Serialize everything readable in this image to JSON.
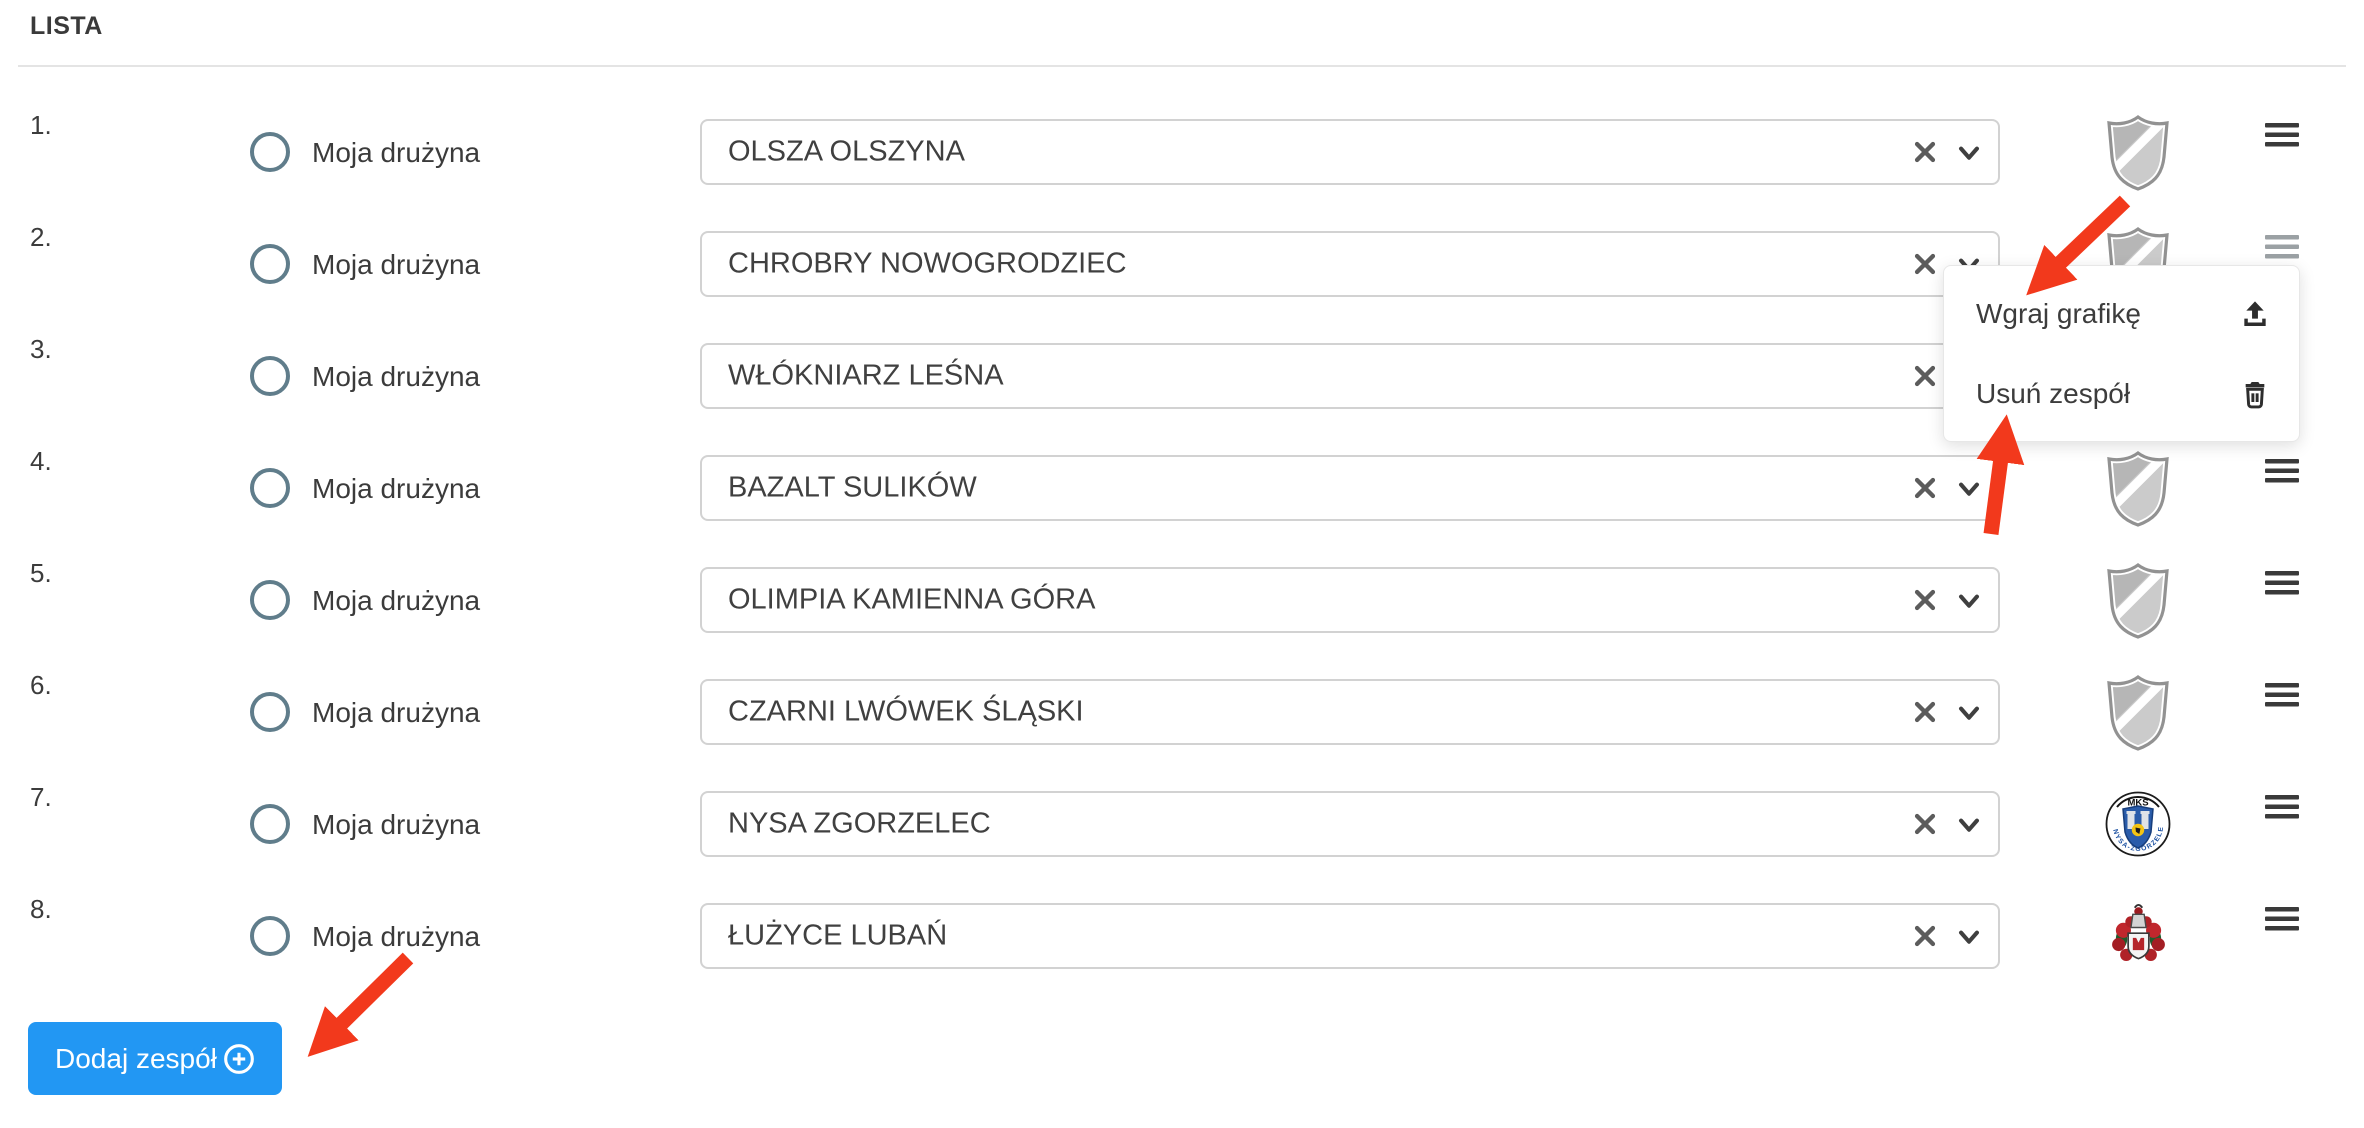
{
  "page": {
    "title_label": "LISTA"
  },
  "rows": [
    {
      "number": "1.",
      "radio_label": "Moja drużyna",
      "team_name": "OLSZA OLSZYNA",
      "badge": "placeholder",
      "menu_open": false
    },
    {
      "number": "2.",
      "radio_label": "Moja drużyna",
      "team_name": "CHROBRY NOWOGRODZIEC",
      "badge": "placeholder",
      "menu_open": true
    },
    {
      "number": "3.",
      "radio_label": "Moja drużyna",
      "team_name": "WŁÓKNIARZ LEŚNA",
      "badge": "placeholder",
      "menu_open": false
    },
    {
      "number": "4.",
      "radio_label": "Moja drużyna",
      "team_name": "BAZALT SULIKÓW",
      "badge": "placeholder",
      "menu_open": false
    },
    {
      "number": "5.",
      "radio_label": "Moja drużyna",
      "team_name": "OLIMPIA KAMIENNA GÓRA",
      "badge": "placeholder",
      "menu_open": false
    },
    {
      "number": "6.",
      "radio_label": "Moja drużyna",
      "team_name": "CZARNI LWÓWEK ŚLĄSKI",
      "badge": "placeholder",
      "menu_open": false
    },
    {
      "number": "7.",
      "radio_label": "Moja drużyna",
      "team_name": "NYSA ZGORZELEC",
      "badge": "mks-nysa-zgorzelec",
      "menu_open": false
    },
    {
      "number": "8.",
      "radio_label": "Moja drużyna",
      "team_name": "ŁUŻYCE LUBAŃ",
      "badge": "luzyce-luban",
      "menu_open": false
    }
  ],
  "context_menu": {
    "items": [
      {
        "label": "Wgraj grafikę",
        "icon": "upload-icon"
      },
      {
        "label": "Usuń zespół",
        "icon": "trash-icon"
      }
    ]
  },
  "add_team_button": {
    "label": "Dodaj zespół",
    "icon": "plus-circle-icon"
  },
  "badge_text": {
    "mks_top": "MKS",
    "mks_ring": "NYSA-ZGORZELEC"
  },
  "colors": {
    "annotation_red": "#f2391c",
    "button_blue": "#2297f3",
    "radio_ring": "#607d8b"
  }
}
